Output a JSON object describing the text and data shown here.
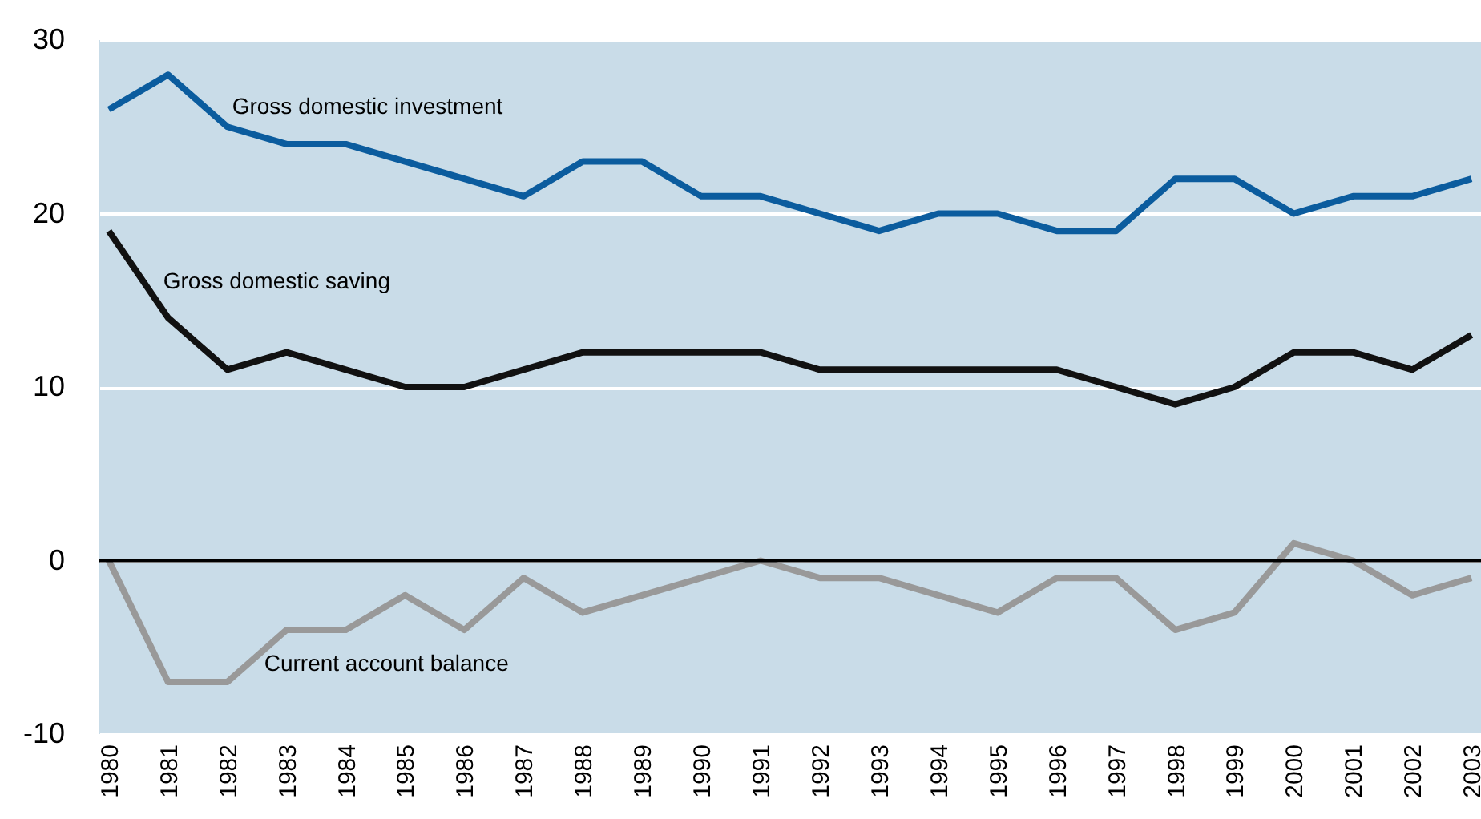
{
  "chart_data": {
    "type": "line",
    "categories": [
      "1980",
      "1981",
      "1982",
      "1983",
      "1984",
      "1985",
      "1986",
      "1987",
      "1988",
      "1989",
      "1990",
      "1991",
      "1992",
      "1993",
      "1994",
      "1995",
      "1996",
      "1997",
      "1998",
      "1999",
      "2000",
      "2001",
      "2002",
      "2003"
    ],
    "series": [
      {
        "name": "Gross domestic investment",
        "color": "#0b5c9e",
        "values": [
          26,
          28,
          25,
          24,
          24,
          23,
          22,
          21,
          23,
          23,
          21,
          21,
          20,
          19,
          20,
          20,
          19,
          19,
          22,
          22,
          20,
          21,
          21,
          22
        ]
      },
      {
        "name": "Gross domestic saving",
        "color": "#111111",
        "values": [
          19,
          14,
          11,
          12,
          11,
          10,
          10,
          11,
          12,
          12,
          12,
          12,
          11,
          11,
          11,
          11,
          11,
          10,
          9,
          10,
          12,
          12,
          11,
          13
        ]
      },
      {
        "name": "Current account balance",
        "color": "#999999",
        "values": [
          0,
          -7,
          -7,
          -4,
          -4,
          -2,
          -4,
          -1,
          -3,
          -2,
          -1,
          0,
          -1,
          -1,
          -2,
          -3,
          -1,
          -1,
          -4,
          -3,
          1,
          0,
          -2,
          -1
        ]
      }
    ],
    "ylim": [
      -10,
      30
    ],
    "yticks": [
      -10,
      0,
      10,
      20,
      30
    ],
    "grid": "y",
    "legend": false,
    "ref_lines": [
      {
        "axis": "y",
        "value": 0,
        "color": "#000000"
      }
    ]
  }
}
